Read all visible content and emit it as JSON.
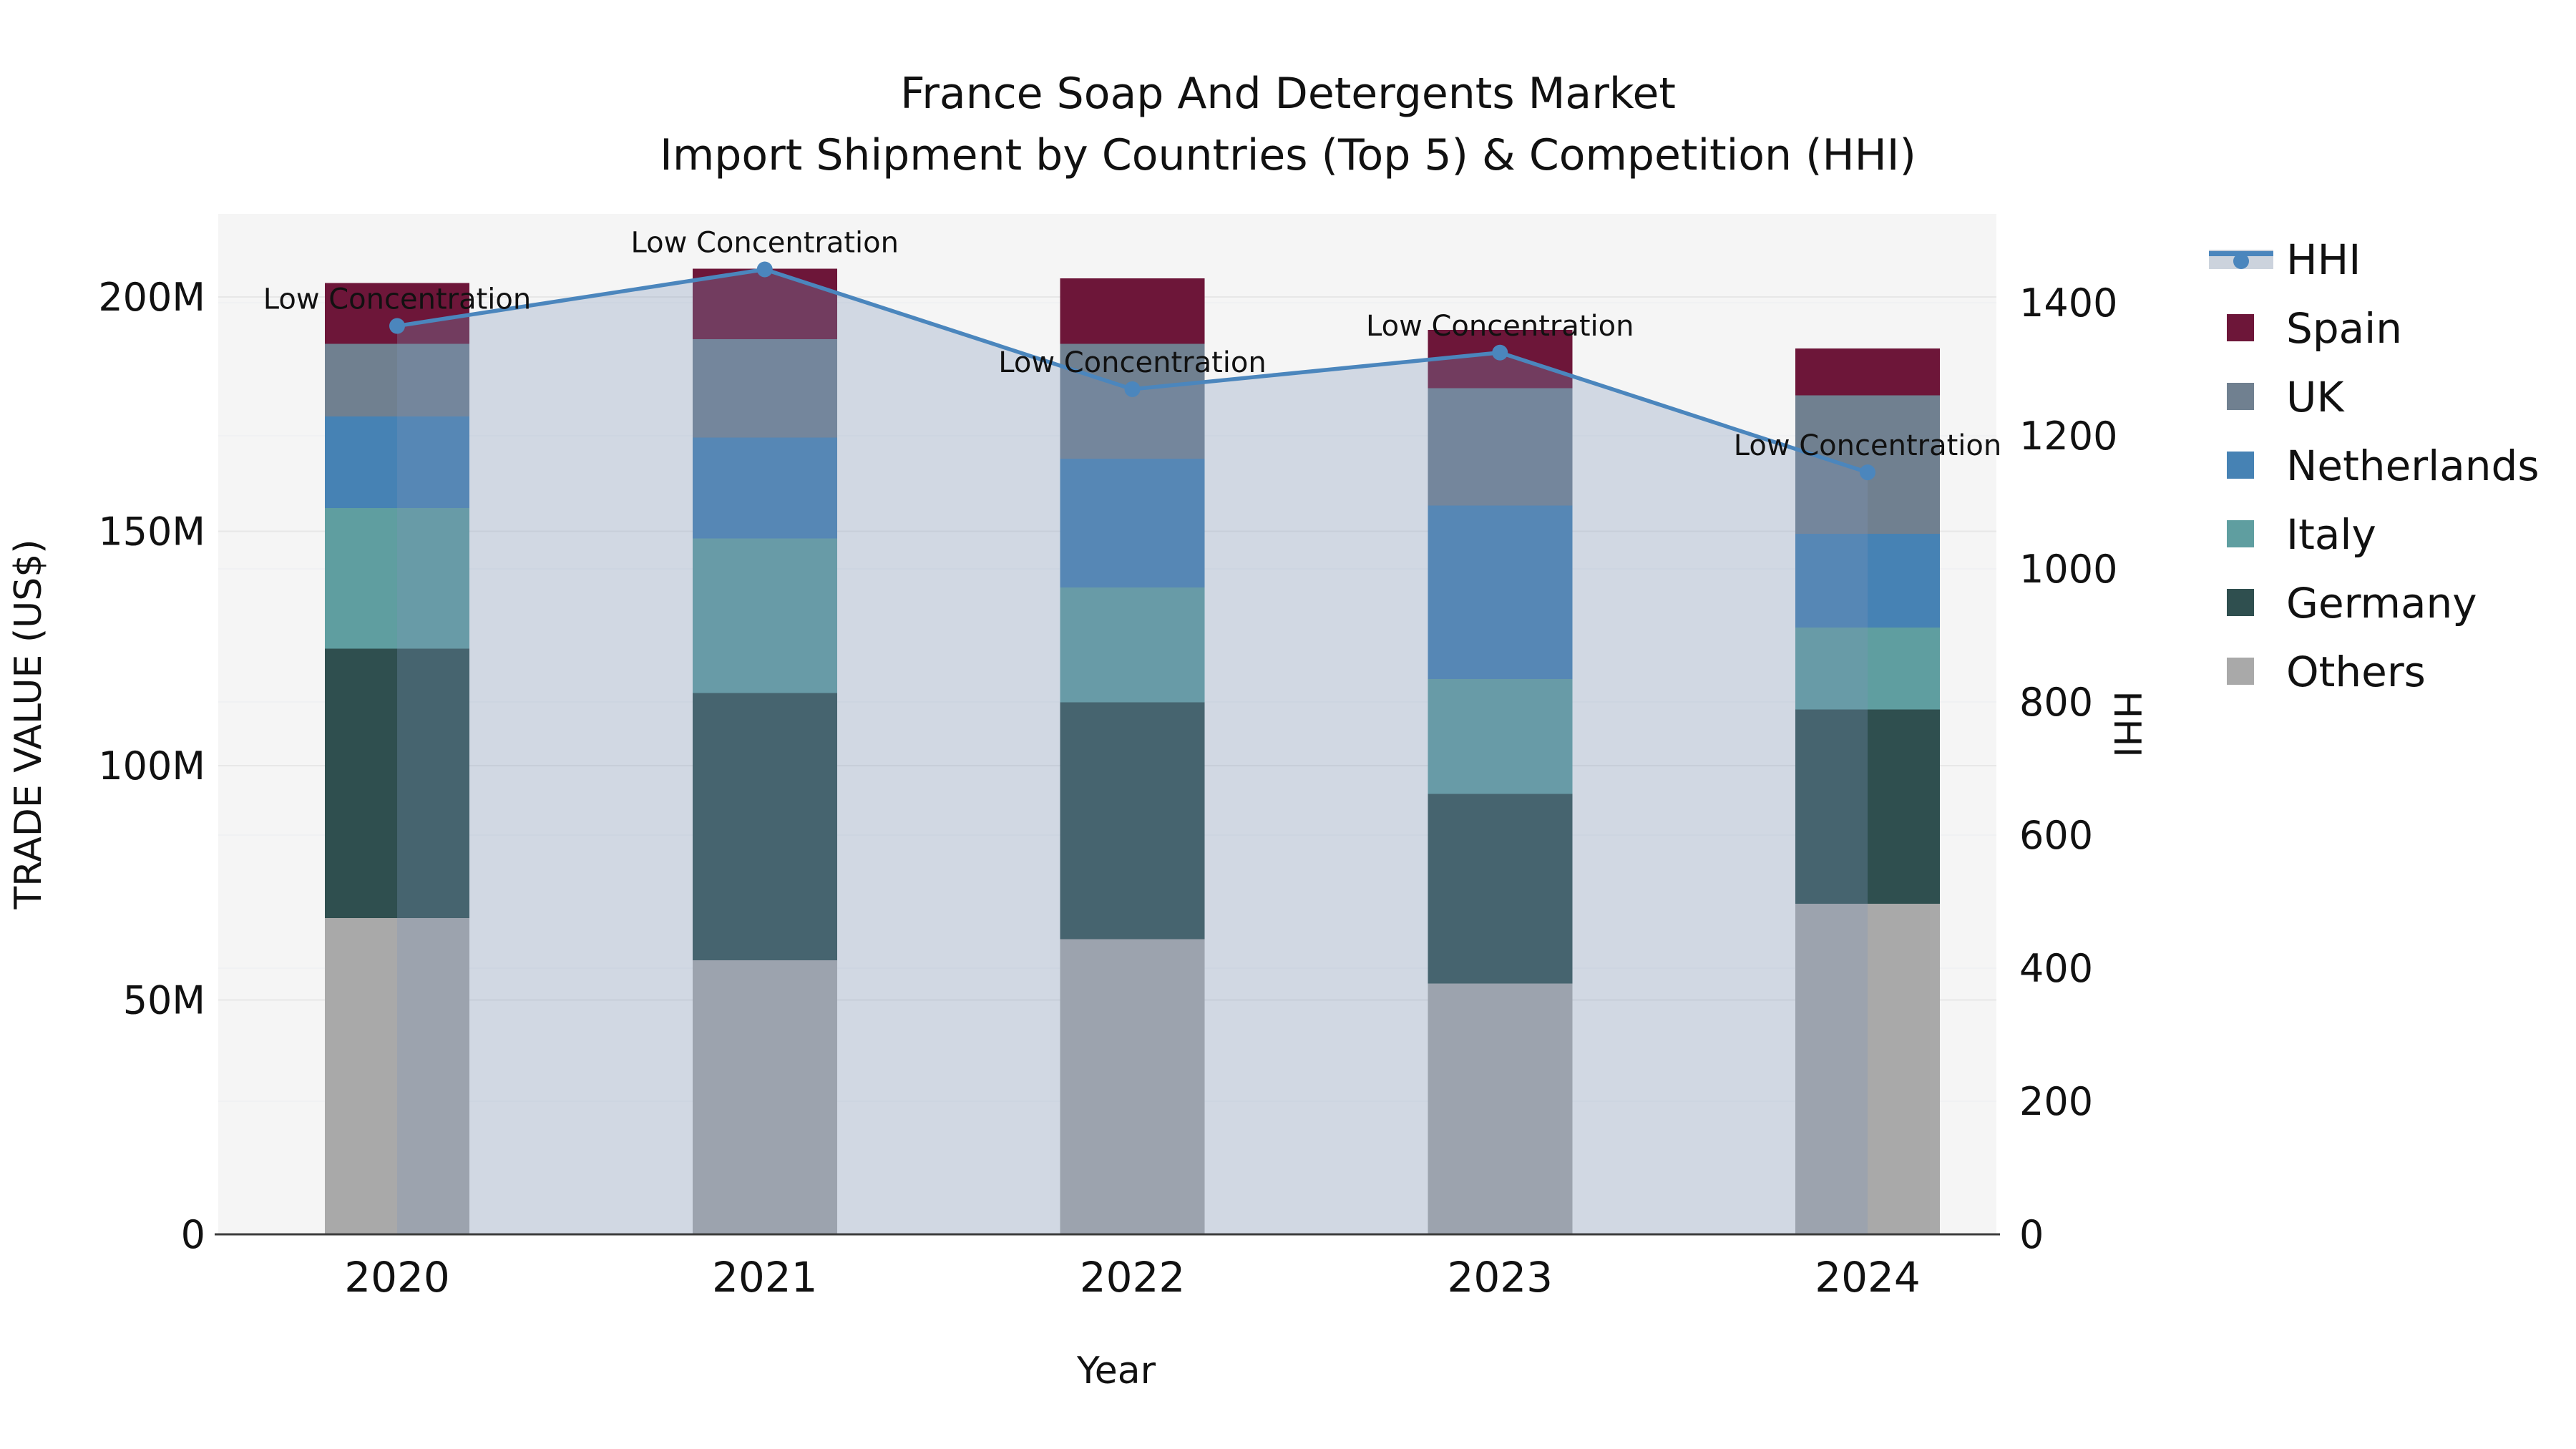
{
  "title": {
    "line1": "France Soap And Detergents Market",
    "line2": "Import Shipment by Countries (Top 5) & Competition (HHI)"
  },
  "axes": {
    "x_label": "Year",
    "left_label": "TRADE VALUE (US$)",
    "right_label": "HHI",
    "left_tick_labels": [
      "0",
      "50M",
      "100M",
      "150M",
      "200M"
    ],
    "right_tick_labels": [
      "0",
      "200",
      "400",
      "600",
      "800",
      "1000",
      "1200",
      "1400"
    ],
    "x_tick_labels": [
      "2020",
      "2021",
      "2022",
      "2023",
      "2024"
    ]
  },
  "legend": {
    "items": [
      {
        "label": "HHI",
        "type": "line",
        "color": "#4b86bd",
        "band_color": "#ccd3dd"
      },
      {
        "label": "Spain",
        "type": "box",
        "color": "#6d1639"
      },
      {
        "label": "UK",
        "type": "box",
        "color": "#708090"
      },
      {
        "label": "Netherlands",
        "type": "box",
        "color": "#4682b4"
      },
      {
        "label": "Italy",
        "type": "box",
        "color": "#5f9ea0"
      },
      {
        "label": "Germany",
        "type": "box",
        "color": "#2f4f4f"
      },
      {
        "label": "Others",
        "type": "box",
        "color": "#a9a9a9"
      }
    ]
  },
  "chart_data": {
    "type": "bar",
    "subtype": "stacked-bar-with-line",
    "title": "France Soap And Detergents Market — Import Shipment by Countries (Top 5) & Competition (HHI)",
    "xlabel": "Year",
    "ylabel_left": "TRADE VALUE (US$)",
    "ylabel_right": "HHI",
    "categories": [
      2020,
      2021,
      2022,
      2023,
      2024
    ],
    "bar_value_unit": "million US$",
    "series": [
      {
        "name": "Others",
        "color": "#a9a9a9",
        "values": [
          67.5,
          58.5,
          63.0,
          53.5,
          70.5
        ]
      },
      {
        "name": "Germany",
        "color": "#2f4f4f",
        "values": [
          57.5,
          57.0,
          50.5,
          40.5,
          41.5
        ]
      },
      {
        "name": "Italy",
        "color": "#5f9ea0",
        "values": [
          30.0,
          33.0,
          24.5,
          24.5,
          17.5
        ]
      },
      {
        "name": "Netherlands",
        "color": "#4682b4",
        "values": [
          19.5,
          21.5,
          27.5,
          37.0,
          20.0
        ]
      },
      {
        "name": "UK",
        "color": "#708090",
        "values": [
          15.5,
          21.0,
          24.5,
          25.0,
          29.5
        ]
      },
      {
        "name": "Spain",
        "color": "#6d1639",
        "values": [
          13.0,
          15.0,
          14.0,
          12.5,
          10.0
        ]
      }
    ],
    "bar_totals": [
      203.0,
      206.0,
      204.0,
      193.0,
      189.0
    ],
    "line_series": {
      "name": "HHI",
      "axis": "right",
      "color": "#4b86bd",
      "fill_color": "rgba(125,150,185,0.30)",
      "values": [
        1365,
        1450,
        1270,
        1325,
        1145
      ],
      "annotation_text": "Low Concentration"
    },
    "left_axis": {
      "tick_values_M": [
        0,
        50,
        100,
        150,
        200
      ],
      "range": [
        0,
        217.7
      ]
    },
    "right_axis": {
      "tick_values": [
        0,
        200,
        400,
        600,
        800,
        1000,
        1200,
        1400
      ],
      "range": [
        0,
        1533
      ]
    },
    "grid": true,
    "legend_position": "outside-right-top",
    "plot_background": "#f5f5f5"
  }
}
